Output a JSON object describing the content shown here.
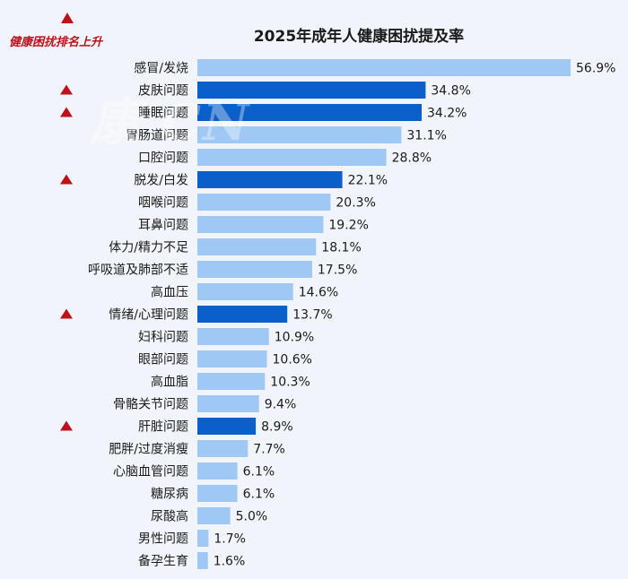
{
  "chart_data": {
    "type": "bar",
    "orientation": "horizontal",
    "title": "2025年成年人健康困扰提及率",
    "legend": {
      "label": "健康困扰排名上升",
      "marker": "red-triangle-up",
      "color": "#c0101a",
      "placement": "top-left"
    },
    "watermark": "康 CN",
    "colors": {
      "normal": "#9fc8f5",
      "rising": "#0b5fc9",
      "marker": "#c0101a"
    },
    "xlim": [
      0,
      60
    ],
    "value_unit": "%",
    "grid": false,
    "categories": [
      "感冒/发烧",
      "皮肤问题",
      "睡眠问题",
      "胃肠道问题",
      "口腔问题",
      "脱发/白发",
      "咽喉问题",
      "耳鼻问题",
      "体力/精力不足",
      "呼吸道及肺部不适",
      "高血压",
      "情绪/心理问题",
      "妇科问题",
      "眼部问题",
      "高血脂",
      "骨骼关节问题",
      "肝脏问题",
      "肥胖/过度消瘦",
      "心脑血管问题",
      "糖尿病",
      "尿酸高",
      "男性问题",
      "备孕生育"
    ],
    "values": [
      56.9,
      34.8,
      34.2,
      31.1,
      28.8,
      22.1,
      20.3,
      19.2,
      18.1,
      17.5,
      14.6,
      13.7,
      10.9,
      10.6,
      10.3,
      9.4,
      8.9,
      7.7,
      6.1,
      6.1,
      5.0,
      1.7,
      1.6
    ],
    "value_labels": [
      "56.9%",
      "34.8%",
      "34.2%",
      "31.1%",
      "28.8%",
      "22.1%",
      "20.3%",
      "19.2%",
      "18.1%",
      "17.5%",
      "14.6%",
      "13.7%",
      "10.9%",
      "10.6%",
      "10.3%",
      "9.4%",
      "8.9%",
      "7.7%",
      "6.1%",
      "6.1%",
      "5.0%",
      "1.7%",
      "1.6%"
    ],
    "rising": [
      false,
      true,
      true,
      false,
      false,
      true,
      false,
      false,
      false,
      false,
      false,
      true,
      false,
      false,
      false,
      false,
      true,
      false,
      false,
      false,
      false,
      false,
      false
    ]
  }
}
